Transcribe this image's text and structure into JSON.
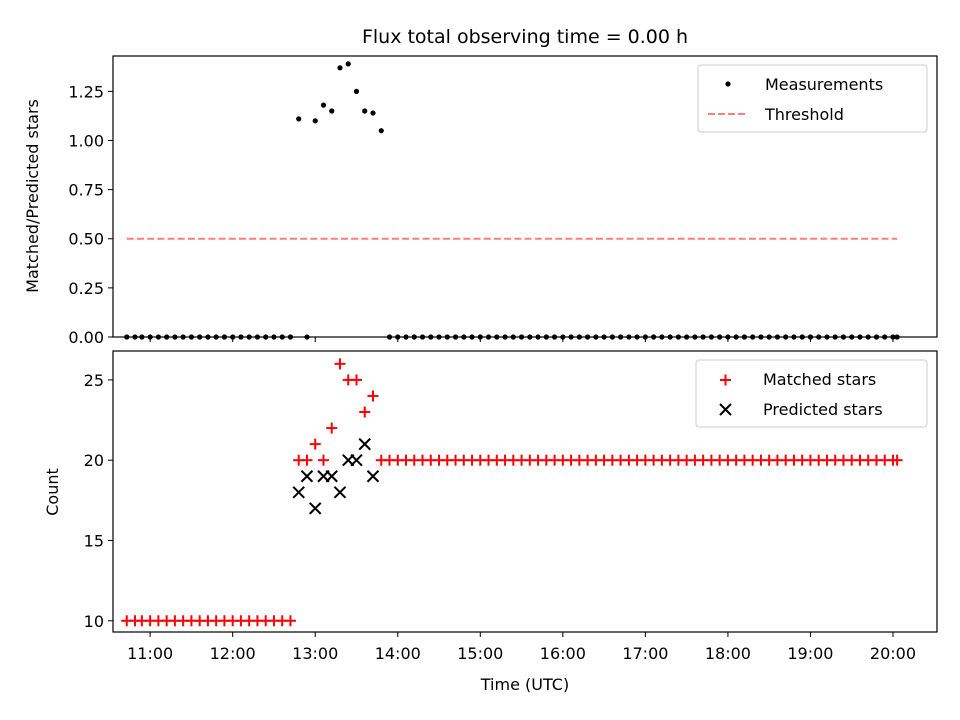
{
  "chart_data": [
    {
      "type": "scatter",
      "title": "Flux total observing time = 0.00 h",
      "ylabel": "Matched/Predicted stars",
      "xlim": [
        "10:33",
        "20:32"
      ],
      "ylim": [
        0,
        1.43
      ],
      "yticks": [
        "0.00",
        "0.25",
        "0.50",
        "0.75",
        "1.00",
        "1.25"
      ],
      "xticks_labels_shown": false,
      "grid": false,
      "legend_position": "top-right",
      "series": [
        {
          "name": "Measurements",
          "marker": "dot",
          "color": "#000000",
          "x": [
            "10:43",
            "10:49",
            "10:54",
            "11:00",
            "11:06",
            "11:12",
            "11:18",
            "11:24",
            "11:30",
            "11:36",
            "11:42",
            "11:48",
            "11:54",
            "12:00",
            "12:06",
            "12:12",
            "12:18",
            "12:24",
            "12:30",
            "12:36",
            "12:42",
            "12:48",
            "12:54",
            "13:00",
            "13:06",
            "13:12",
            "13:18",
            "13:24",
            "13:30",
            "13:36",
            "13:42",
            "13:48",
            "13:54",
            "14:00",
            "14:06",
            "14:12",
            "14:18",
            "14:24",
            "14:30",
            "14:36",
            "14:42",
            "14:48",
            "14:54",
            "15:00",
            "15:06",
            "15:12",
            "15:18",
            "15:24",
            "15:30",
            "15:36",
            "15:42",
            "15:48",
            "15:54",
            "16:00",
            "16:06",
            "16:12",
            "16:18",
            "16:24",
            "16:30",
            "16:36",
            "16:42",
            "16:48",
            "16:54",
            "17:00",
            "17:06",
            "17:12",
            "17:18",
            "17:24",
            "17:30",
            "17:36",
            "17:42",
            "17:48",
            "17:54",
            "18:00",
            "18:06",
            "18:12",
            "18:18",
            "18:24",
            "18:30",
            "18:36",
            "18:42",
            "18:48",
            "18:54",
            "19:00",
            "19:06",
            "19:12",
            "19:18",
            "19:24",
            "19:30",
            "19:36",
            "19:42",
            "19:48",
            "19:54",
            "20:00",
            "20:03"
          ],
          "y": [
            0,
            0,
            0,
            0,
            0,
            0,
            0,
            0,
            0,
            0,
            0,
            0,
            0,
            0,
            0,
            0,
            0,
            0,
            0,
            0,
            0,
            1.11,
            0,
            1.1,
            1.18,
            1.15,
            1.37,
            1.39,
            1.25,
            1.15,
            1.14,
            1.05,
            0,
            0,
            0,
            0,
            0,
            0,
            0,
            0,
            0,
            0,
            0,
            0,
            0,
            0,
            0,
            0,
            0,
            0,
            0,
            0,
            0,
            0,
            0,
            0,
            0,
            0,
            0,
            0,
            0,
            0,
            0,
            0,
            0,
            0,
            0,
            0,
            0,
            0,
            0,
            0,
            0,
            0,
            0,
            0,
            0,
            0,
            0,
            0,
            0,
            0,
            0,
            0,
            0,
            0,
            0,
            0,
            0,
            0,
            0,
            0,
            0,
            0,
            0
          ]
        },
        {
          "name": "Threshold",
          "line_style": "dashed",
          "color": "#ff7f7f",
          "x": [
            "10:43",
            "20:03"
          ],
          "y": [
            0.5,
            0.5
          ]
        }
      ]
    },
    {
      "type": "scatter",
      "title": "",
      "xlabel": "Time (UTC)",
      "ylabel": "Count",
      "xlim": [
        "10:33",
        "20:32"
      ],
      "ylim": [
        9.3,
        26.8
      ],
      "xticks": [
        "11:00",
        "12:00",
        "13:00",
        "14:00",
        "15:00",
        "16:00",
        "17:00",
        "18:00",
        "19:00",
        "20:00"
      ],
      "yticks": [
        "10",
        "15",
        "20",
        "25"
      ],
      "grid": false,
      "legend_position": "top-right",
      "series": [
        {
          "name": "Matched stars",
          "marker": "plus",
          "color": "#ff0000",
          "x": [
            "10:43",
            "10:49",
            "10:54",
            "11:00",
            "11:06",
            "11:12",
            "11:18",
            "11:24",
            "11:30",
            "11:36",
            "11:42",
            "11:48",
            "11:54",
            "12:00",
            "12:06",
            "12:12",
            "12:18",
            "12:24",
            "12:30",
            "12:36",
            "12:42",
            "12:48",
            "12:54",
            "13:00",
            "13:06",
            "13:12",
            "13:18",
            "13:24",
            "13:30",
            "13:36",
            "13:42",
            "13:48",
            "13:54",
            "14:00",
            "14:06",
            "14:12",
            "14:18",
            "14:24",
            "14:30",
            "14:36",
            "14:42",
            "14:48",
            "14:54",
            "15:00",
            "15:06",
            "15:12",
            "15:18",
            "15:24",
            "15:30",
            "15:36",
            "15:42",
            "15:48",
            "15:54",
            "16:00",
            "16:06",
            "16:12",
            "16:18",
            "16:24",
            "16:30",
            "16:36",
            "16:42",
            "16:48",
            "16:54",
            "17:00",
            "17:06",
            "17:12",
            "17:18",
            "17:24",
            "17:30",
            "17:36",
            "17:42",
            "17:48",
            "17:54",
            "18:00",
            "18:06",
            "18:12",
            "18:18",
            "18:24",
            "18:30",
            "18:36",
            "18:42",
            "18:48",
            "18:54",
            "19:00",
            "19:06",
            "19:12",
            "19:18",
            "19:24",
            "19:30",
            "19:36",
            "19:42",
            "19:48",
            "19:54",
            "20:00",
            "20:03"
          ],
          "y": [
            10,
            10,
            10,
            10,
            10,
            10,
            10,
            10,
            10,
            10,
            10,
            10,
            10,
            10,
            10,
            10,
            10,
            10,
            10,
            10,
            10,
            20,
            20,
            21,
            20,
            22,
            26,
            25,
            25,
            23,
            24,
            20,
            20,
            20,
            20,
            20,
            20,
            20,
            20,
            20,
            20,
            20,
            20,
            20,
            20,
            20,
            20,
            20,
            20,
            20,
            20,
            20,
            20,
            20,
            20,
            20,
            20,
            20,
            20,
            20,
            20,
            20,
            20,
            20,
            20,
            20,
            20,
            20,
            20,
            20,
            20,
            20,
            20,
            20,
            20,
            20,
            20,
            20,
            20,
            20,
            20,
            20,
            20,
            20,
            20,
            20,
            20,
            20,
            20,
            20,
            20,
            20,
            20,
            20,
            20
          ]
        },
        {
          "name": "Predicted stars",
          "marker": "x",
          "color": "#000000",
          "x": [
            "12:48",
            "12:54",
            "13:00",
            "13:06",
            "13:12",
            "13:18",
            "13:24",
            "13:30",
            "13:36",
            "13:42"
          ],
          "y": [
            18,
            19,
            17,
            19,
            19,
            18,
            20,
            20,
            21,
            19
          ]
        }
      ]
    }
  ]
}
